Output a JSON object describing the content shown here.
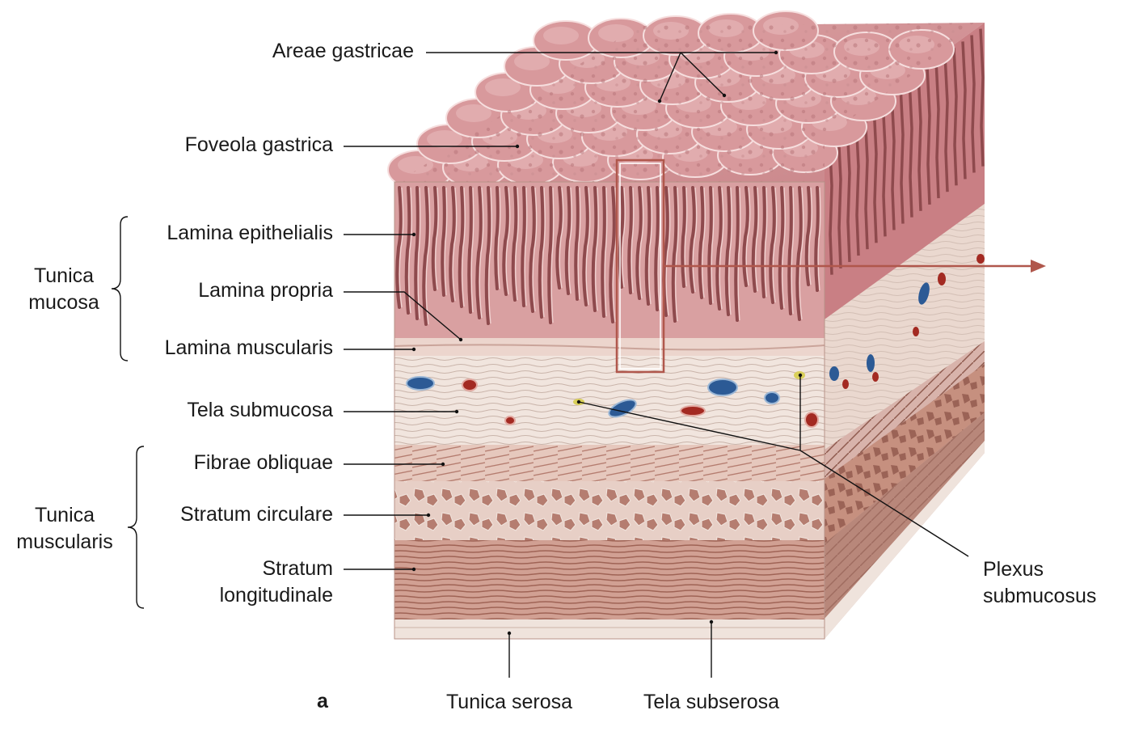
{
  "figure": {
    "panel_letter": "a",
    "labels": {
      "areae_gastricae": "Areae gastricae",
      "foveola_gastrica": "Foveola gastrica",
      "lamina_epithelialis": "Lamina epithelialis",
      "lamina_propria": "Lamina propria",
      "lamina_muscularis": "Lamina muscularis",
      "tela_submucosa": "Tela submucosa",
      "fibrae_obliquae": "Fibrae obliquae",
      "stratum_circulare": "Stratum circulare",
      "stratum_longitudinale_1": "Stratum",
      "stratum_longitudinale_2": "longitudinale",
      "tunica_serosa": "Tunica serosa",
      "tela_subserosa": "Tela subserosa",
      "plexus_1": "Plexus",
      "plexus_2": "submucosus"
    },
    "groups": {
      "tunica_mucosa_1": "Tunica",
      "tunica_mucosa_2": "mucosa",
      "tunica_muscularis_1": "Tunica",
      "tunica_muscularis_2": "muscularis"
    },
    "colors": {
      "mucosa": "#d79a9b",
      "mucosa_dark": "#8e4a4d",
      "submucosa": "#efe2da",
      "muscle": "#d4a296",
      "muscle_dark": "#b57d70",
      "vein": "#2c5a95",
      "artery": "#a32a22",
      "nerve": "#d9cf5a",
      "highlight_box": "#b0574c"
    }
  }
}
